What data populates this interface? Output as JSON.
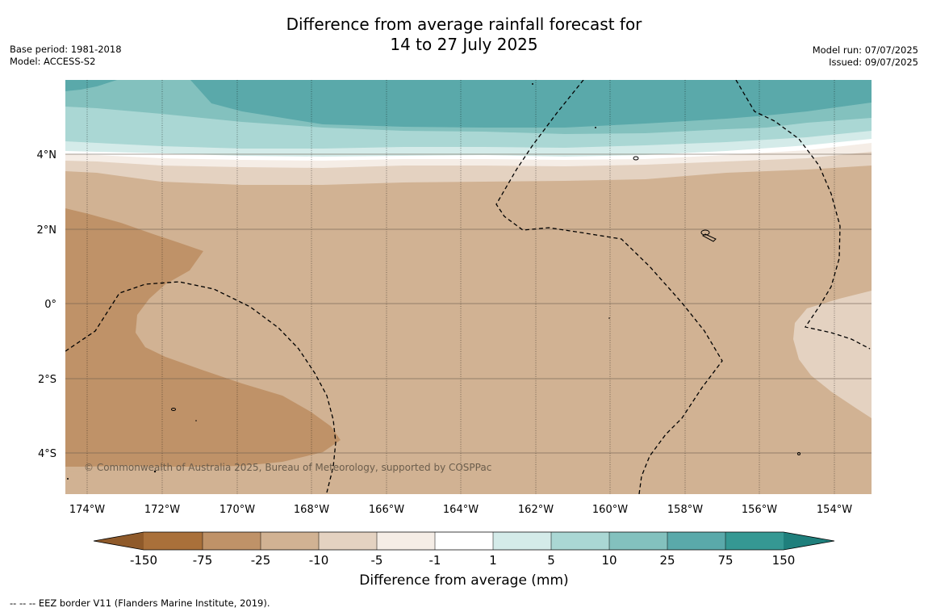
{
  "title": {
    "line1": "Difference from average rainfall forecast for",
    "line2": "14 to 27 July 2025"
  },
  "meta_left": {
    "base_period": "Base period: 1981-2018",
    "model": "Model: ACCESS-S2"
  },
  "meta_right": {
    "model_run": "Model run: 07/07/2025",
    "issued": "Issued: 09/07/2025"
  },
  "map": {
    "lon_labels": [
      "174°W",
      "172°W",
      "170°W",
      "168°W",
      "166°W",
      "164°W",
      "162°W",
      "160°W",
      "158°W",
      "156°W",
      "154°W"
    ],
    "lat_labels": [
      "4°N",
      "2°N",
      "0°",
      "2°S",
      "4°S"
    ],
    "copyright": "© Commonwealth of Australia 2025, Bureau of Meteorology, supported by COSPPac",
    "colors": {
      "m150": "#a9703a",
      "m75": "#bf9268",
      "m25": "#d1b293",
      "m10": "#e4d2c1",
      "m5": "#f5ede6",
      "zero": "#ffffff",
      "p1": "#d4ebe9",
      "p5": "#aad7d4",
      "p10": "#83c1be",
      "p25": "#5aa9aa",
      "p75": "#359893",
      "p150": "#1f7f7c"
    }
  },
  "colorbar": {
    "labels": [
      "-150",
      "-75",
      "-25",
      "-10",
      "-5",
      "-1",
      "1",
      "5",
      "10",
      "25",
      "75",
      "150"
    ],
    "title": "Difference from average (mm)"
  },
  "footnote": "--  --  -- EEZ border V11 (Flanders Marine Institute, 2019)."
}
